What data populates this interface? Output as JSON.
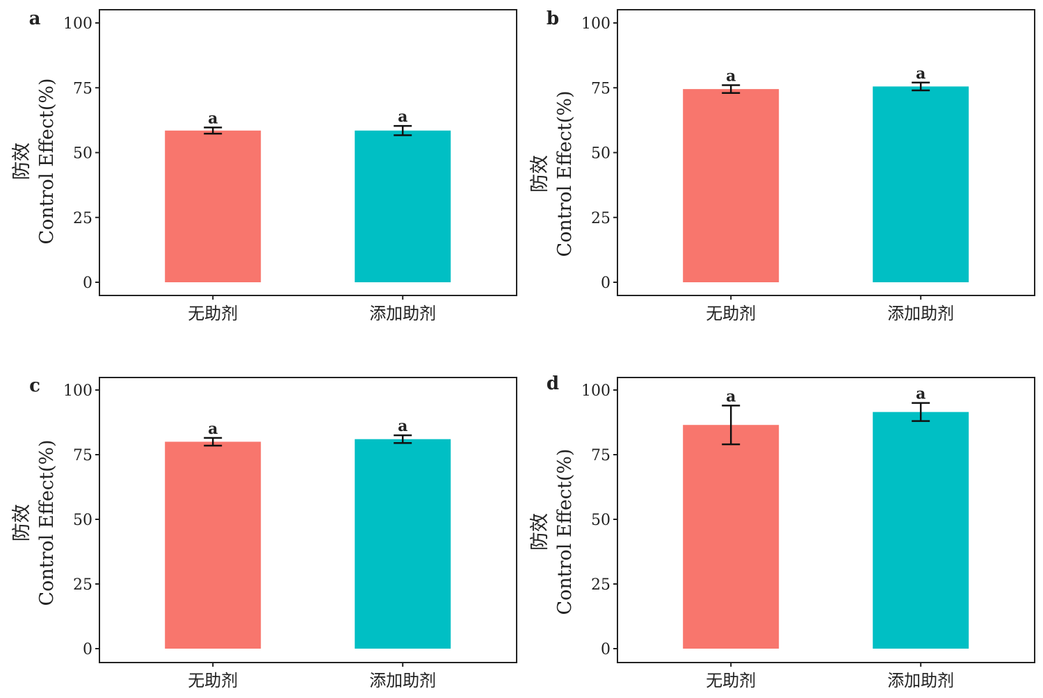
{
  "chart_data": [
    {
      "type": "bar",
      "panel_label": "a",
      "ylabel_cn": "防效",
      "ylabel_en": "Control Effect(%)",
      "categories": [
        "无助剂",
        "添加助剂"
      ],
      "values": [
        58.5,
        58.5
      ],
      "errors": [
        1.2,
        1.8
      ],
      "significance": [
        "a",
        "a"
      ],
      "colors": [
        "#F8766D",
        "#00BFC4"
      ],
      "ylim": [
        0,
        100
      ],
      "yticks": [
        "0",
        "25",
        "50",
        "75",
        "100"
      ],
      "grid": false
    },
    {
      "type": "bar",
      "panel_label": "b",
      "ylabel_cn": "防效",
      "ylabel_en": "Control Effect(%)",
      "categories": [
        "无助剂",
        "添加助剂"
      ],
      "values": [
        74.5,
        75.5
      ],
      "errors": [
        1.5,
        1.5
      ],
      "significance": [
        "a",
        "a"
      ],
      "colors": [
        "#F8766D",
        "#00BFC4"
      ],
      "ylim": [
        0,
        100
      ],
      "yticks": [
        "0",
        "25",
        "50",
        "75",
        "100"
      ],
      "grid": false
    },
    {
      "type": "bar",
      "panel_label": "c",
      "ylabel_cn": "防效",
      "ylabel_en": "Control Effect(%)",
      "categories": [
        "无助剂",
        "添加助剂"
      ],
      "values": [
        80,
        81
      ],
      "errors": [
        1.5,
        1.5
      ],
      "significance": [
        "a",
        "a"
      ],
      "colors": [
        "#F8766D",
        "#00BFC4"
      ],
      "ylim": [
        0,
        100
      ],
      "yticks": [
        "0",
        "25",
        "50",
        "75",
        "100"
      ],
      "grid": false
    },
    {
      "type": "bar",
      "panel_label": "d",
      "ylabel_cn": "防效",
      "ylabel_en": "Control Effect(%)",
      "categories": [
        "无助剂",
        "添加助剂"
      ],
      "values": [
        86.5,
        91.5
      ],
      "errors": [
        7.5,
        3.5
      ],
      "significance": [
        "a",
        "a"
      ],
      "colors": [
        "#F8766D",
        "#00BFC4"
      ],
      "ylim": [
        0,
        100
      ],
      "yticks": [
        "0",
        "25",
        "50",
        "75",
        "100"
      ],
      "grid": false
    }
  ]
}
